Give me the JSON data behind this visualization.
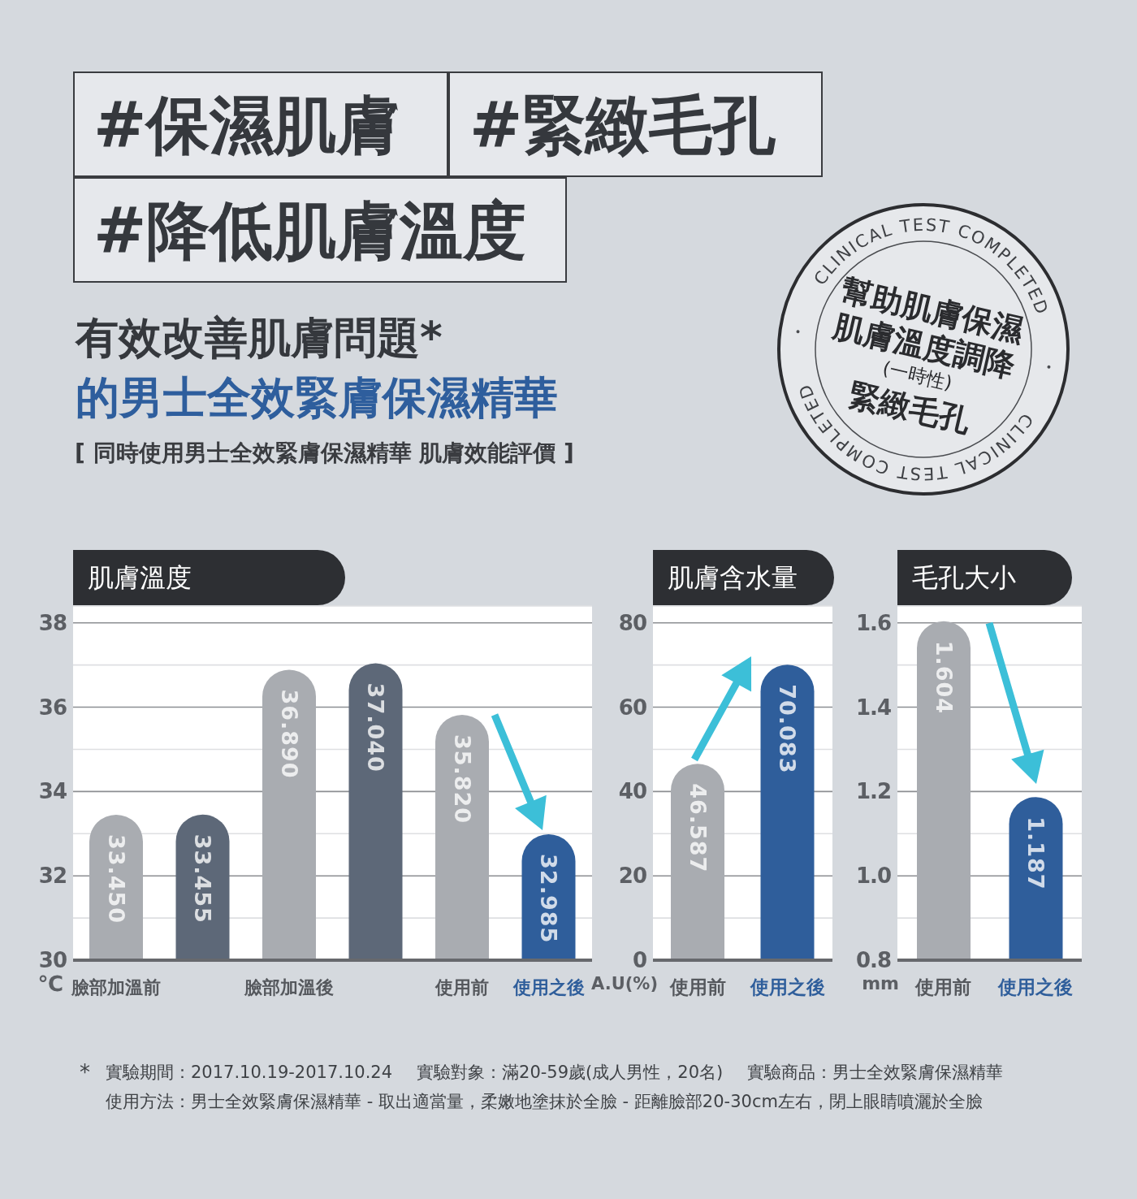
{
  "chart_data": [
    {
      "type": "other",
      "title": "有效改善肌膚問題*",
      "subtitle": "的男士全效緊膚保濕精華",
      "annotations": [
        "#保濕肌膚",
        "#緊緻毛孔",
        "#降低肌膚溫度",
        "[ 同時使用男士全效緊膚保濕精華 肌膚效能評價 ]",
        "CLINICAL TEST COMPLETED",
        "CLINICAL TEST COMPLETED",
        "幫助肌膚保濕",
        "肌膚溫度調降",
        "(一時性)",
        "緊緻毛孔"
      ]
    },
    {
      "type": "bar",
      "title": "肌膚溫度",
      "ylabel": "℃",
      "categories": [
        "臉部加溫前",
        null,
        "臉部加溫後",
        null,
        "使用前",
        "使用之後"
      ],
      "values": [
        33.45,
        33.455,
        36.89,
        37.04,
        35.82,
        32.985
      ],
      "colors": [
        "#a9acb1",
        "#5d6878",
        "#a9acb1",
        "#5d6878",
        "#a9acb1",
        "#2f5e9b"
      ],
      "value_labels": [
        "33.450",
        "33.455",
        "36.890",
        "37.040",
        "35.820",
        "32.985"
      ],
      "ylim": [
        30,
        38.4
      ],
      "yticks": [
        30,
        {
          "value": 31,
          "label": null
        },
        32,
        {
          "value": 33,
          "label": null
        },
        34,
        {
          "value": 35,
          "label": null
        },
        36,
        {
          "value": 37,
          "label": null
        },
        38
      ],
      "grid": "y"
    },
    {
      "type": "bar",
      "title": "肌膚含水量",
      "ylabel": "A.U(%)",
      "categories": [
        "使用前",
        "使用之後"
      ],
      "values": [
        46.587,
        70.083
      ],
      "colors": [
        "#a9acb1",
        "#2f5e9b"
      ],
      "value_labels": [
        "46.587",
        "70.083"
      ],
      "ylim": [
        0,
        84
      ],
      "yticks": [
        0,
        {
          "value": 10,
          "label": null
        },
        20,
        {
          "value": 30,
          "label": null
        },
        40,
        {
          "value": 50,
          "label": null
        },
        60,
        {
          "value": 70,
          "label": null
        },
        80
      ],
      "grid": "y"
    },
    {
      "type": "bar",
      "title": "毛孔大小",
      "ylabel": "mm",
      "categories": [
        "使用前",
        "使用之後"
      ],
      "values": [
        1.604,
        1.187
      ],
      "colors": [
        "#a9acb1",
        "#2f5e9b"
      ],
      "value_labels": [
        "1.604",
        "1.187"
      ],
      "ylim": [
        0.8,
        1.64
      ],
      "yticks": [
        0.8,
        {
          "value": 0.9,
          "label": null
        },
        {
          "value": 1,
          "label": "1.0"
        },
        {
          "value": 1.1,
          "label": null
        },
        1.2,
        {
          "value": 1.3,
          "label": null
        },
        1.4,
        {
          "value": 1.5,
          "label": null
        },
        1.6
      ],
      "grid": "y"
    },
    {
      "type": "other",
      "annotations": [
        "*",
        "實驗期間：2017.10.19-2017.10.24",
        "實驗對象：滿20-59歲(成人男性，20名)",
        "實驗商品：男士全效緊膚保濕精華",
        "使用方法：男士全效緊膚保濕精華 - 取出適當量，柔嫩地塗抹於全臉 - 距離臉部20-30cm左右，閉上眼睛噴灑於全臉"
      ]
    }
  ]
}
